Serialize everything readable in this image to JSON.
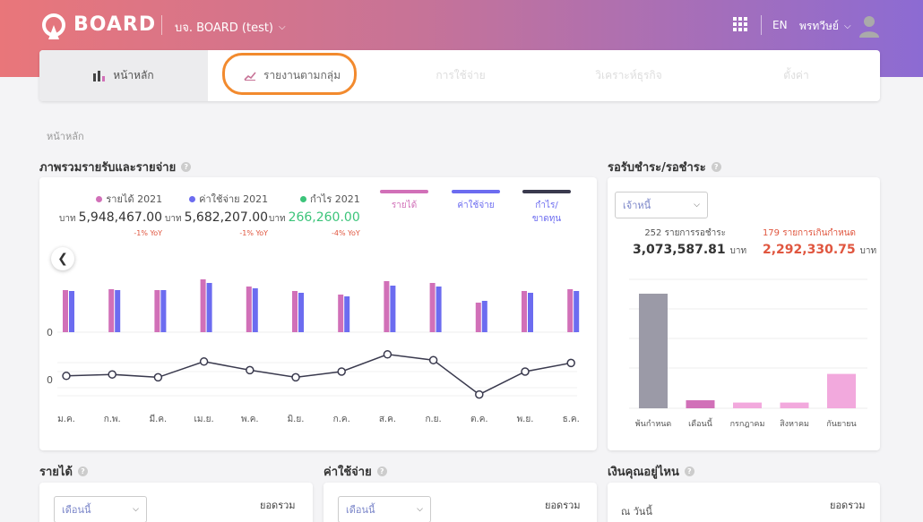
{
  "header": {
    "brand": "BOARD",
    "company": "บจ. BOARD (test)",
    "lang": "EN",
    "user": "พรทวีษย์"
  },
  "tabs": [
    {
      "label": "หน้าหลัก"
    },
    {
      "label": "รายงานตามกลุ่ม"
    },
    {
      "label": "การใช้จ่าย"
    },
    {
      "label": "วิเคราะห์ธุรกิจ"
    },
    {
      "label": "ตั้งค่า"
    }
  ],
  "breadcrumb": "หน้าหลัก",
  "overview": {
    "title": "ภาพรวมรายรับและรายจ่าย",
    "stats": [
      {
        "label": "รายได้ 2021",
        "unit": "บาท",
        "value": "5,948,467.00",
        "yoy": "-1% YoY",
        "color": "#d170b8"
      },
      {
        "label": "ค่าใช้จ่าย 2021",
        "unit": "บาท",
        "value": "5,682,207.00",
        "yoy": "-1% YoY",
        "color": "#6c6cf0"
      },
      {
        "label": "กำไร 2021",
        "unit": "บาท",
        "value": "266,260.00",
        "yoy": "-4% YoY",
        "color": "#3cc47a"
      }
    ],
    "legend": [
      {
        "label": "รายได้",
        "color": "#d170b8"
      },
      {
        "label": "ค่าใช้จ่าย",
        "color": "#6c6cf0"
      },
      {
        "label": "กำไร/ขาดทุน",
        "color": "#3a3a4e"
      }
    ]
  },
  "receivable": {
    "title": "รอรับชำระ/รอชำระ",
    "dropdown": "เจ้าหนี้",
    "left_label": "252 รายการรอชำระ",
    "left_value": "3,073,587.81",
    "left_unit": "บาท",
    "right_label": "179 รายการเกินกำหนด",
    "right_value": "2,292,330.75",
    "right_unit": "บาท",
    "right_color": "#e0563f"
  },
  "bottom": {
    "income": {
      "title": "รายได้",
      "dropdown": "เดือนนี้",
      "total": "ยอดรวม"
    },
    "expense": {
      "title": "ค่าใช้จ่าย",
      "dropdown": "เดือนนี้",
      "total": "ยอดรวม"
    },
    "money": {
      "title": "เงินคุณอยู่ไหน",
      "asof": "ณ วันนี้",
      "total": "ยอดรวม"
    }
  },
  "chart_data": [
    {
      "type": "bar",
      "categories": [
        "ม.ค.",
        "ก.พ.",
        "มี.ค.",
        "เม.ย.",
        "พ.ค.",
        "มิ.ย.",
        "ก.ค.",
        "ส.ค.",
        "ก.ย.",
        "ต.ค.",
        "พ.ย.",
        "ธ.ค."
      ],
      "series": [
        {
          "name": "รายได้",
          "values": [
            47,
            48,
            47,
            59,
            51,
            46,
            42,
            57,
            55,
            33,
            46,
            48
          ]
        },
        {
          "name": "ค่าใช้จ่าย",
          "values": [
            46,
            47,
            47,
            55,
            49,
            44,
            40,
            52,
            51,
            35,
            44,
            46
          ]
        }
      ],
      "ytick": "0",
      "colors": [
        "#d170b8",
        "#6c6cf0"
      ]
    },
    {
      "type": "line",
      "categories": [
        "ม.ค.",
        "ก.พ.",
        "มี.ค.",
        "เม.ย.",
        "พ.ค.",
        "มิ.ย.",
        "ก.ค.",
        "ส.ค.",
        "ก.ย.",
        "ต.ค.",
        "พ.ย.",
        "ธ.ค."
      ],
      "series": [
        {
          "name": "กำไร/ขาดทุน",
          "values": [
            2,
            3,
            1,
            12,
            6,
            1,
            5,
            17,
            13,
            -11,
            5,
            11
          ]
        }
      ],
      "ytick": "0",
      "color": "#3a3a4e"
    },
    {
      "type": "bar",
      "categories": [
        "พ้นกำหนด",
        "เดือนนี้",
        "กรกฎาคม",
        "สิงหาคม",
        "กันยายน"
      ],
      "values": [
        100,
        7,
        5,
        5,
        30
      ],
      "colors": [
        "#9b9aa7",
        "#d170b8",
        "#f2a9dd",
        "#f2a9dd",
        "#f2a9dd"
      ]
    }
  ]
}
